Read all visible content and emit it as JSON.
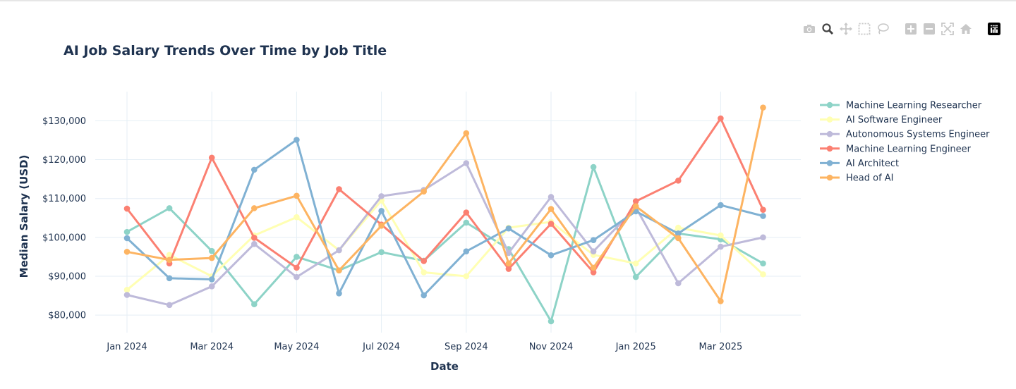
{
  "modebar": {
    "buttons": [
      {
        "name": "camera-icon"
      },
      {
        "name": "zoom-icon"
      },
      {
        "name": "pan-icon"
      },
      {
        "name": "box-select-icon"
      },
      {
        "name": "lasso-select-icon"
      },
      {
        "name": "zoom-in-icon"
      },
      {
        "name": "zoom-out-icon"
      },
      {
        "name": "autoscale-icon"
      },
      {
        "name": "reset-axes-icon"
      },
      {
        "name": "plotly-logo-icon"
      }
    ]
  },
  "chart_data": {
    "type": "line",
    "title": "AI Job Salary Trends Over Time by Job Title",
    "xlabel": "Date",
    "ylabel": "Median Salary (USD)",
    "x": [
      "2024-01",
      "2024-02",
      "2024-03",
      "2024-04",
      "2024-05",
      "2024-06",
      "2024-07",
      "2024-08",
      "2024-09",
      "2024-10",
      "2024-11",
      "2024-12",
      "2025-01",
      "2025-02",
      "2025-03",
      "2025-04"
    ],
    "x_ticks": [
      {
        "x": "2024-01",
        "label": "Jan 2024"
      },
      {
        "x": "2024-03",
        "label": "Mar 2024"
      },
      {
        "x": "2024-05",
        "label": "May 2024"
      },
      {
        "x": "2024-07",
        "label": "Jul 2024"
      },
      {
        "x": "2024-09",
        "label": "Sep 2024"
      },
      {
        "x": "2024-11",
        "label": "Nov 2024"
      },
      {
        "x": "2025-01",
        "label": "Jan 2025"
      },
      {
        "x": "2025-03",
        "label": "Mar 2025"
      }
    ],
    "y_ticks": [
      80000,
      90000,
      100000,
      110000,
      120000,
      130000
    ],
    "y_tick_labels": [
      "$80,000",
      "$90,000",
      "$100,000",
      "$110,000",
      "$120,000",
      "$130,000"
    ],
    "ylim": [
      75500,
      137500
    ],
    "grid": true,
    "legend_position": "right",
    "series": [
      {
        "name": "Machine Learning Researcher",
        "color": "#8dd3c7",
        "values": [
          101400,
          107500,
          96500,
          82800,
          95000,
          91500,
          96200,
          94000,
          103800,
          97000,
          78400,
          118100,
          89800,
          101000,
          99500,
          93300
        ]
      },
      {
        "name": "AI Software Engineer",
        "color": "#ffffb3",
        "values": [
          86500,
          95500,
          90000,
          100500,
          105200,
          96700,
          109500,
          91000,
          90000,
          102500,
          104000,
          95500,
          93300,
          102500,
          100500,
          90500
        ]
      },
      {
        "name": "Autonomous Systems Engineer",
        "color": "#bebada",
        "values": [
          85200,
          82600,
          87400,
          98300,
          89800,
          96700,
          110600,
          112200,
          119100,
          96000,
          110400,
          96400,
          107700,
          88200,
          97600,
          100000
        ]
      },
      {
        "name": "Machine Learning Engineer",
        "color": "#fb8072",
        "values": [
          107400,
          93300,
          120500,
          99900,
          92200,
          112400,
          103300,
          93900,
          106400,
          91900,
          103500,
          91000,
          109300,
          114600,
          130600,
          107100
        ]
      },
      {
        "name": "AI Architect",
        "color": "#80b1d3",
        "values": [
          99800,
          89500,
          89200,
          117400,
          125100,
          85600,
          106800,
          85100,
          96400,
          102300,
          95400,
          99300,
          106700,
          101000,
          108300,
          105500
        ]
      },
      {
        "name": "Head of AI",
        "color": "#fdb462",
        "values": [
          96300,
          94200,
          94700,
          107500,
          110700,
          91500,
          103000,
          111800,
          126800,
          93300,
          107300,
          92200,
          108000,
          99800,
          83600,
          133400
        ]
      }
    ]
  }
}
